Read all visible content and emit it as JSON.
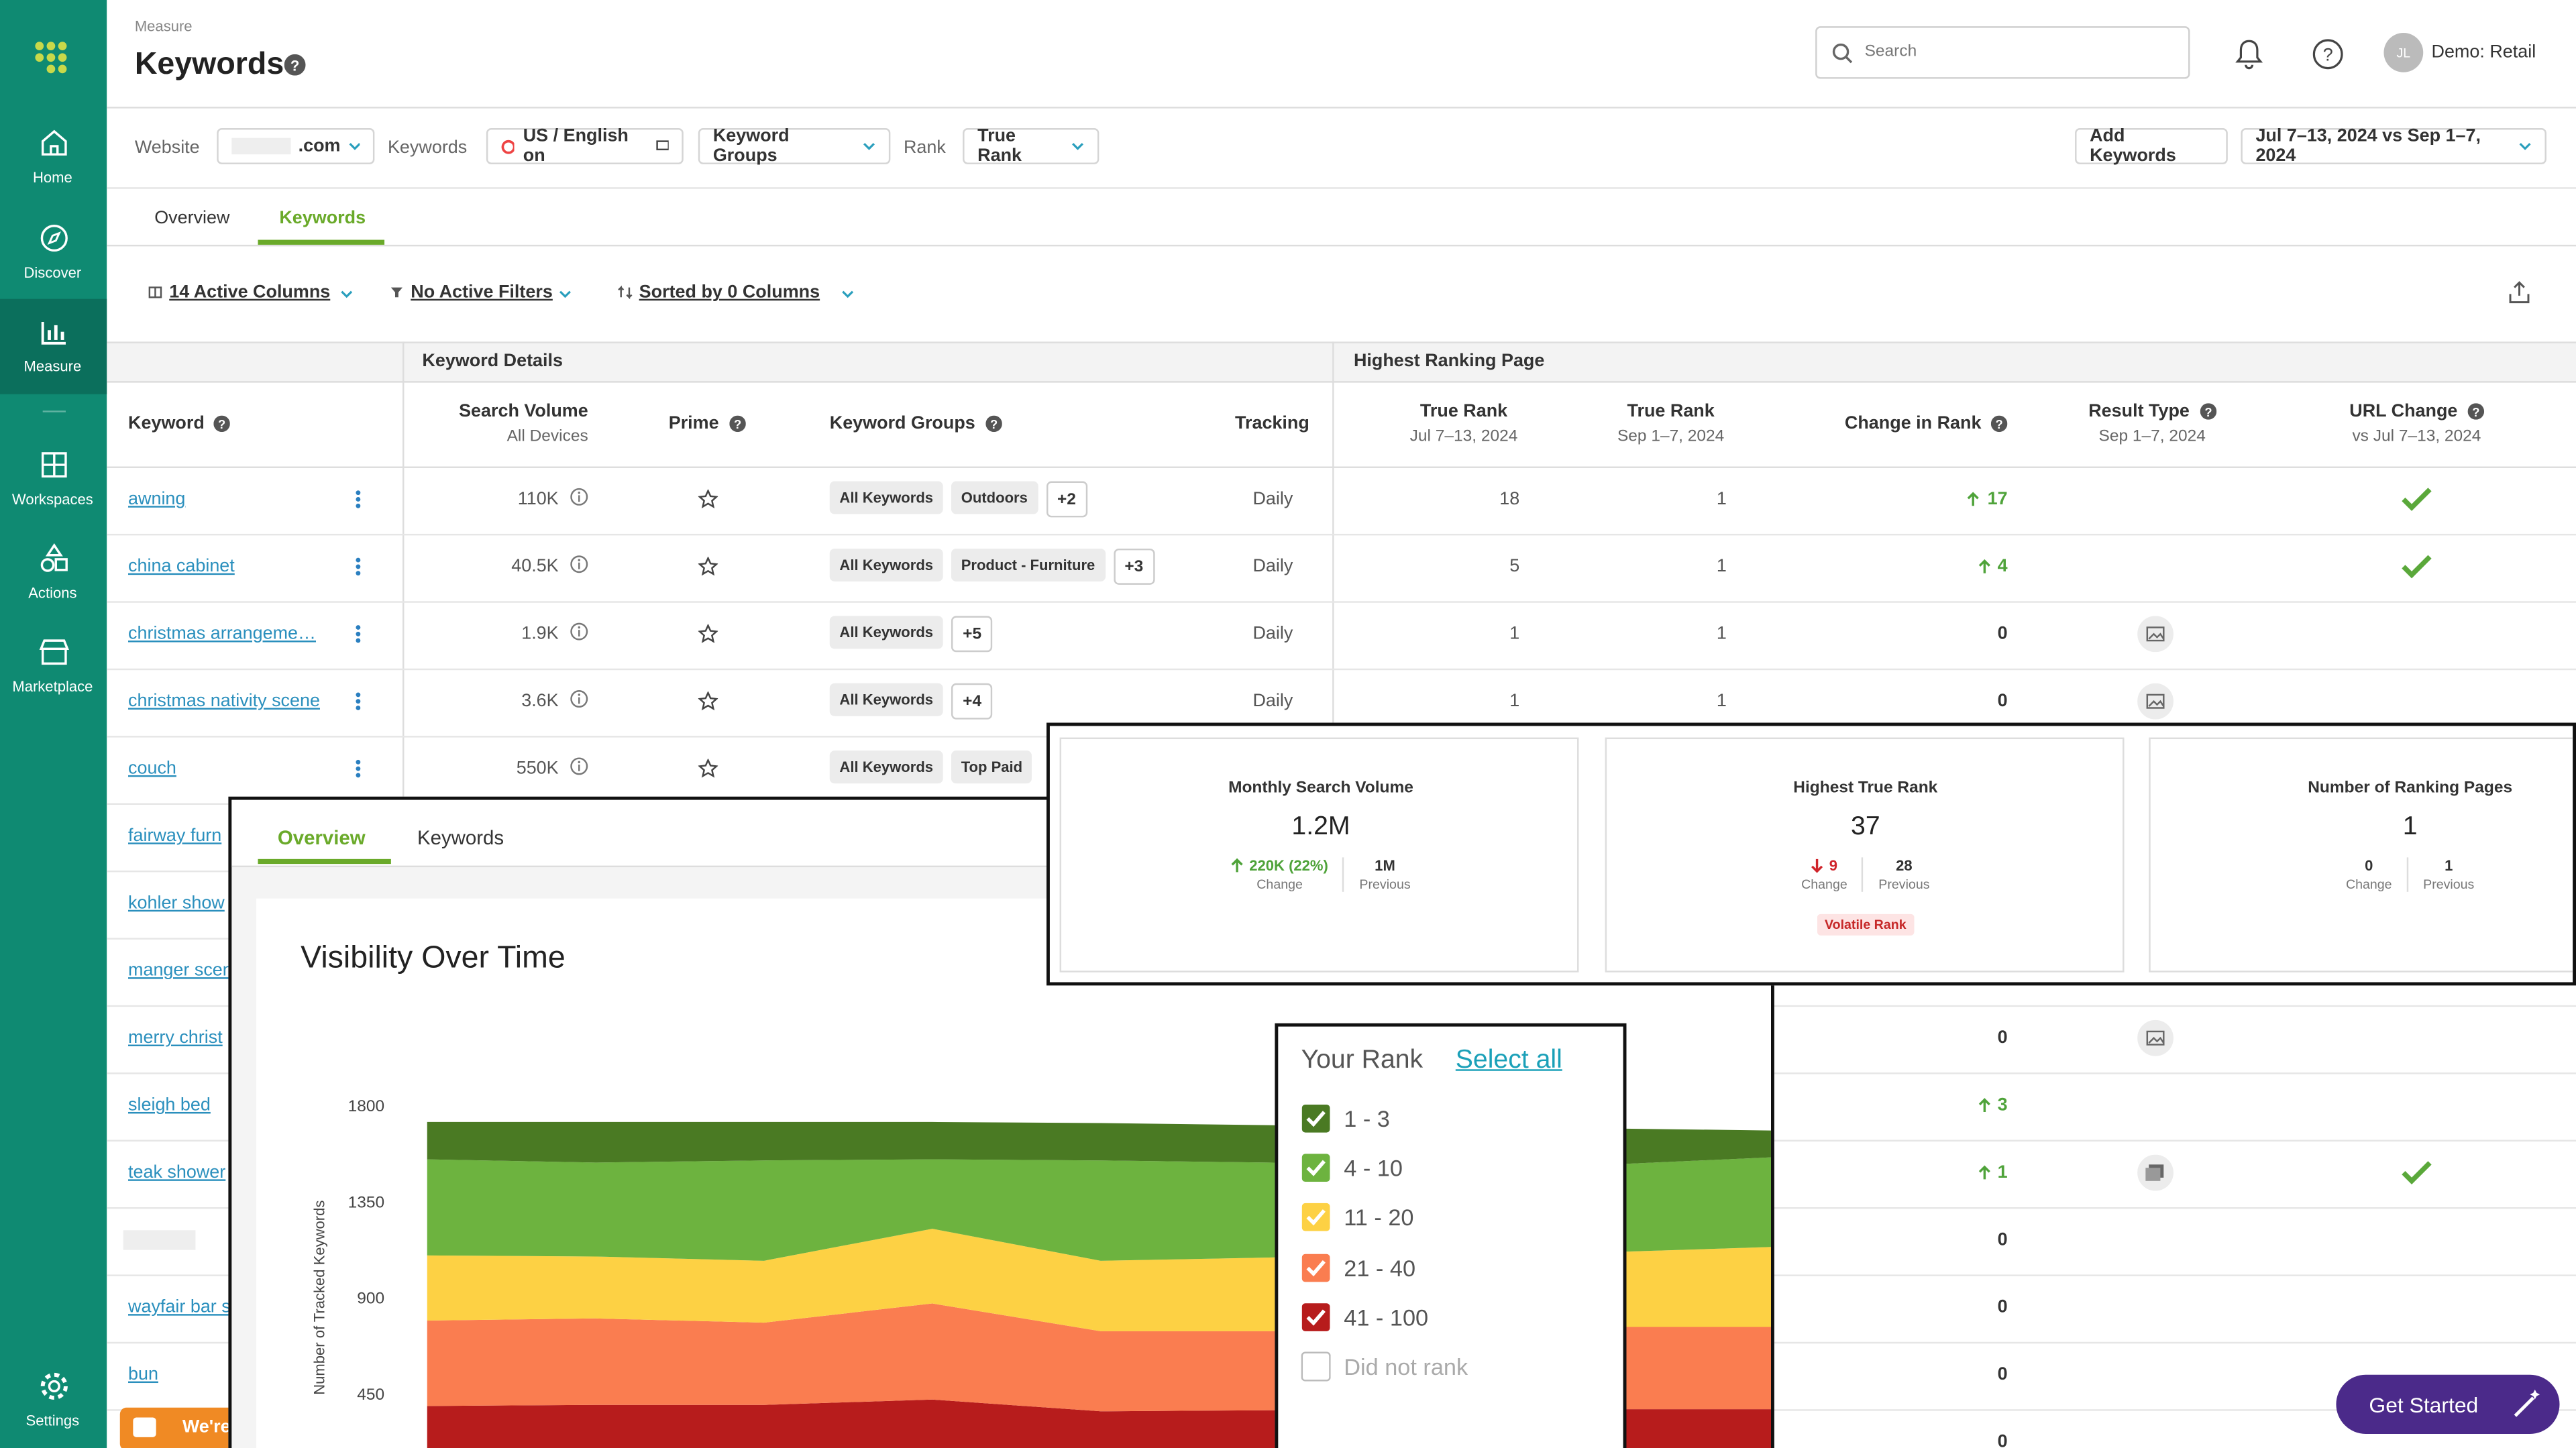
{
  "sidebar": {
    "items": [
      "Home",
      "Discover",
      "Measure",
      "Workspaces",
      "Actions",
      "Marketplace",
      "Settings"
    ],
    "active": 2
  },
  "header": {
    "breadcrumb": "Measure",
    "title": "Keywords",
    "search_placeholder": "Search",
    "user_initials": "JL",
    "user_name": "Demo: Retail"
  },
  "toolbar": {
    "website_label": "Website",
    "website": ".com",
    "keywords_label": "Keywords",
    "locale": "US / English on",
    "keyword_groups": "Keyword Groups",
    "rank_label": "Rank",
    "rank": "True Rank",
    "add_keywords": "Add Keywords",
    "date_range": "Jul 7–13, 2024 vs Sep 1–7, 2024"
  },
  "tabs": [
    "Overview",
    "Keywords"
  ],
  "active_tab": 1,
  "table_controls": [
    "14 Active Columns",
    "No Active Filters",
    "Sorted by 0 Columns"
  ],
  "table": {
    "groups": [
      "Keyword Details",
      "Highest Ranking Page"
    ],
    "columns": [
      {
        "title": "Keyword",
        "help": true
      },
      {
        "title": "Search Volume",
        "sub": "All Devices"
      },
      {
        "title": "Prime",
        "help": true
      },
      {
        "title": "Keyword Groups",
        "help": true
      },
      {
        "title": "Tracking"
      },
      {
        "title": "True Rank",
        "sub": "Jul 7–13, 2024"
      },
      {
        "title": "True Rank",
        "sub": "Sep 1–7, 2024"
      },
      {
        "title": "Change in Rank",
        "help": true
      },
      {
        "title": "Result Type",
        "sub": "Sep 1–7, 2024",
        "help": true
      },
      {
        "title": "URL Change",
        "sub": "vs Jul 7–13, 2024",
        "help": true
      }
    ],
    "rows": [
      {
        "keyword": "awning",
        "volume": "110K",
        "groups": [
          "All Keywords",
          "Outdoors"
        ],
        "more": "+2",
        "tracking": "Daily",
        "rank_before": 18,
        "rank_after": 1,
        "change": 17,
        "url_change": true
      },
      {
        "keyword": "china cabinet",
        "volume": "40.5K",
        "groups": [
          "All Keywords",
          "Product - Furniture"
        ],
        "more": "+3",
        "tracking": "Daily",
        "rank_before": 5,
        "rank_after": 1,
        "change": 4,
        "url_change": true
      },
      {
        "keyword": "christmas arrangeme…",
        "volume": "1.9K",
        "groups": [
          "All Keywords"
        ],
        "more": "+5",
        "tracking": "Daily",
        "rank_before": 1,
        "rank_after": 1,
        "change": 0,
        "result_type": "image"
      },
      {
        "keyword": "christmas nativity scene",
        "volume": "3.6K",
        "groups": [
          "All Keywords"
        ],
        "more": "+4",
        "tracking": "Daily",
        "rank_before": 1,
        "rank_after": 1,
        "change": 0,
        "result_type": "image"
      },
      {
        "keyword": "couch",
        "volume": "550K",
        "groups": [
          "All Keywords",
          "Top Paid"
        ]
      },
      {
        "keyword": "fairway furn"
      },
      {
        "keyword": "kohler show"
      },
      {
        "keyword": "manger scen"
      },
      {
        "keyword": "merry christ",
        "change": 0,
        "result_type": "image"
      },
      {
        "keyword": "sleigh bed",
        "change": 3
      },
      {
        "keyword": "teak shower",
        "change": 1,
        "result_type": "gallery",
        "url_change": true
      },
      {
        "keyword": null,
        "change": 0
      },
      {
        "keyword": "wayfair bar s",
        "change": 0
      },
      {
        "keyword": "bun",
        "change": 0
      },
      {
        "keyword": null,
        "change": 0
      }
    ]
  },
  "metrics": [
    {
      "title": "Monthly Search Volume",
      "value": "1.2M",
      "change": "220K (22%)",
      "direction": "up",
      "change_label": "Change",
      "previous": "1M",
      "previous_label": "Previous"
    },
    {
      "title": "Highest True Rank",
      "value": "37",
      "change": "9",
      "direction": "down",
      "change_label": "Change",
      "previous": "28",
      "previous_label": "Previous",
      "badge": "Volatile Rank"
    },
    {
      "title": "Number of Ranking Pages",
      "value": "1",
      "change": "0",
      "change_label": "Change",
      "previous": "1",
      "previous_label": "Previous"
    }
  ],
  "overview_tabs": [
    "Overview",
    "Keywords"
  ],
  "chart_data": {
    "type": "area",
    "stacked": true,
    "title": "Visibility Over Time",
    "y_label": "Number of Tracked Keywords",
    "categories": [
      null,
      null,
      null,
      null,
      null,
      null,
      null,
      null,
      null
    ],
    "ylim": [
      0,
      1800
    ],
    "yticks": [
      450,
      900,
      1350,
      1800
    ],
    "grid": false,
    "series": [
      {
        "name": "41 - 100",
        "color": "#b71c1c",
        "values": [
          400,
          405,
          405,
          430,
          375,
          380,
          385,
          385,
          385
        ]
      },
      {
        "name": "21 - 40",
        "color": "#fa7d50",
        "values": [
          400,
          405,
          385,
          450,
          375,
          370,
          370,
          385,
          385
        ]
      },
      {
        "name": "11 - 20",
        "color": "#fdd144",
        "values": [
          305,
          290,
          290,
          350,
          330,
          345,
          365,
          350,
          375
        ]
      },
      {
        "name": "4 - 10",
        "color": "#6db33f",
        "values": [
          450,
          440,
          470,
          325,
          470,
          445,
          410,
          410,
          420
        ]
      },
      {
        "name": "1 - 3",
        "color": "#4a7a23",
        "values": [
          175,
          190,
          180,
          175,
          175,
          175,
          175,
          170,
          125
        ]
      }
    ]
  },
  "legend": {
    "title": "Your Rank",
    "select_all": "Select all",
    "unranked": "Did not rank"
  },
  "get_started": "Get Started",
  "chat_label": "We're"
}
